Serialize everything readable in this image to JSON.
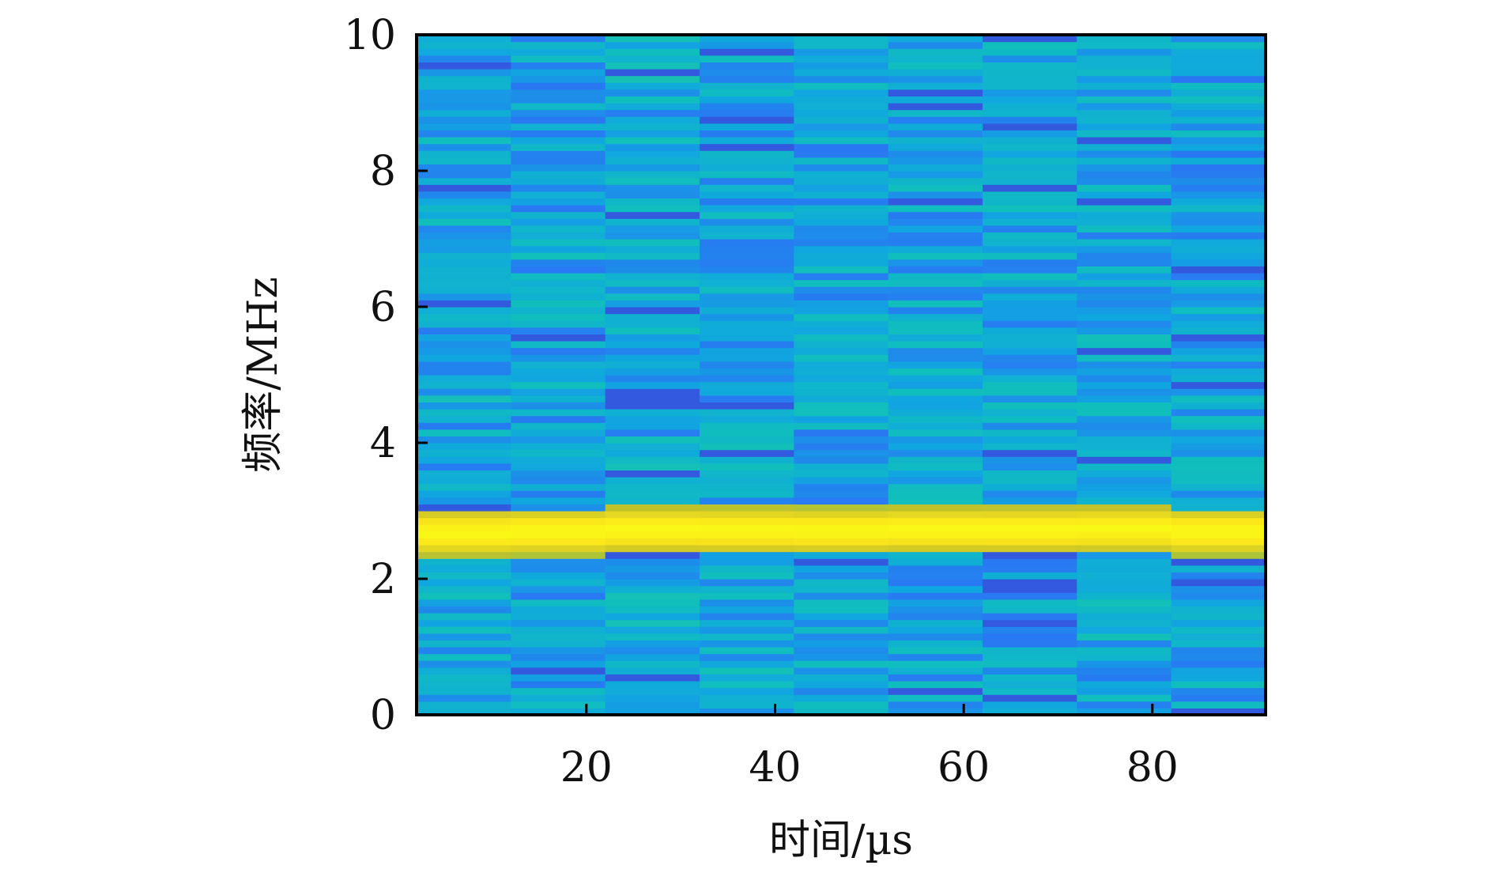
{
  "chart_data": {
    "type": "heatmap",
    "xlabel": "时间/µs",
    "ylabel": "频率/MHz",
    "xlim": [
      2,
      92
    ],
    "ylim": [
      0,
      10
    ],
    "x_ticks": [
      20,
      40,
      60,
      80
    ],
    "y_ticks": [
      0,
      2,
      4,
      6,
      8,
      10
    ],
    "x_tick_labels": [
      "20",
      "40",
      "60",
      "80"
    ],
    "y_tick_labels": [
      "0",
      "2",
      "4",
      "6",
      "8",
      "10"
    ],
    "time_bins_us": [
      7,
      17,
      27,
      37,
      47,
      57,
      67,
      77,
      87
    ],
    "time_bin_width_us": 10,
    "frequency_bin_mhz": 0.1,
    "dominant_frequency_mhz": 2.7,
    "dominant_band_mhz": [
      2.5,
      2.95
    ],
    "value_range": [
      0,
      1
    ],
    "background_level_range": [
      0.15,
      0.45
    ],
    "peak_level": 1.0,
    "colormap": [
      "#3e26a8",
      "#2e6ff6",
      "#10a6e0",
      "#10bfbc",
      "#40d07a",
      "#c4c22a",
      "#fbe61a",
      "#f9fb15"
    ],
    "grid": false,
    "legend": "none"
  }
}
